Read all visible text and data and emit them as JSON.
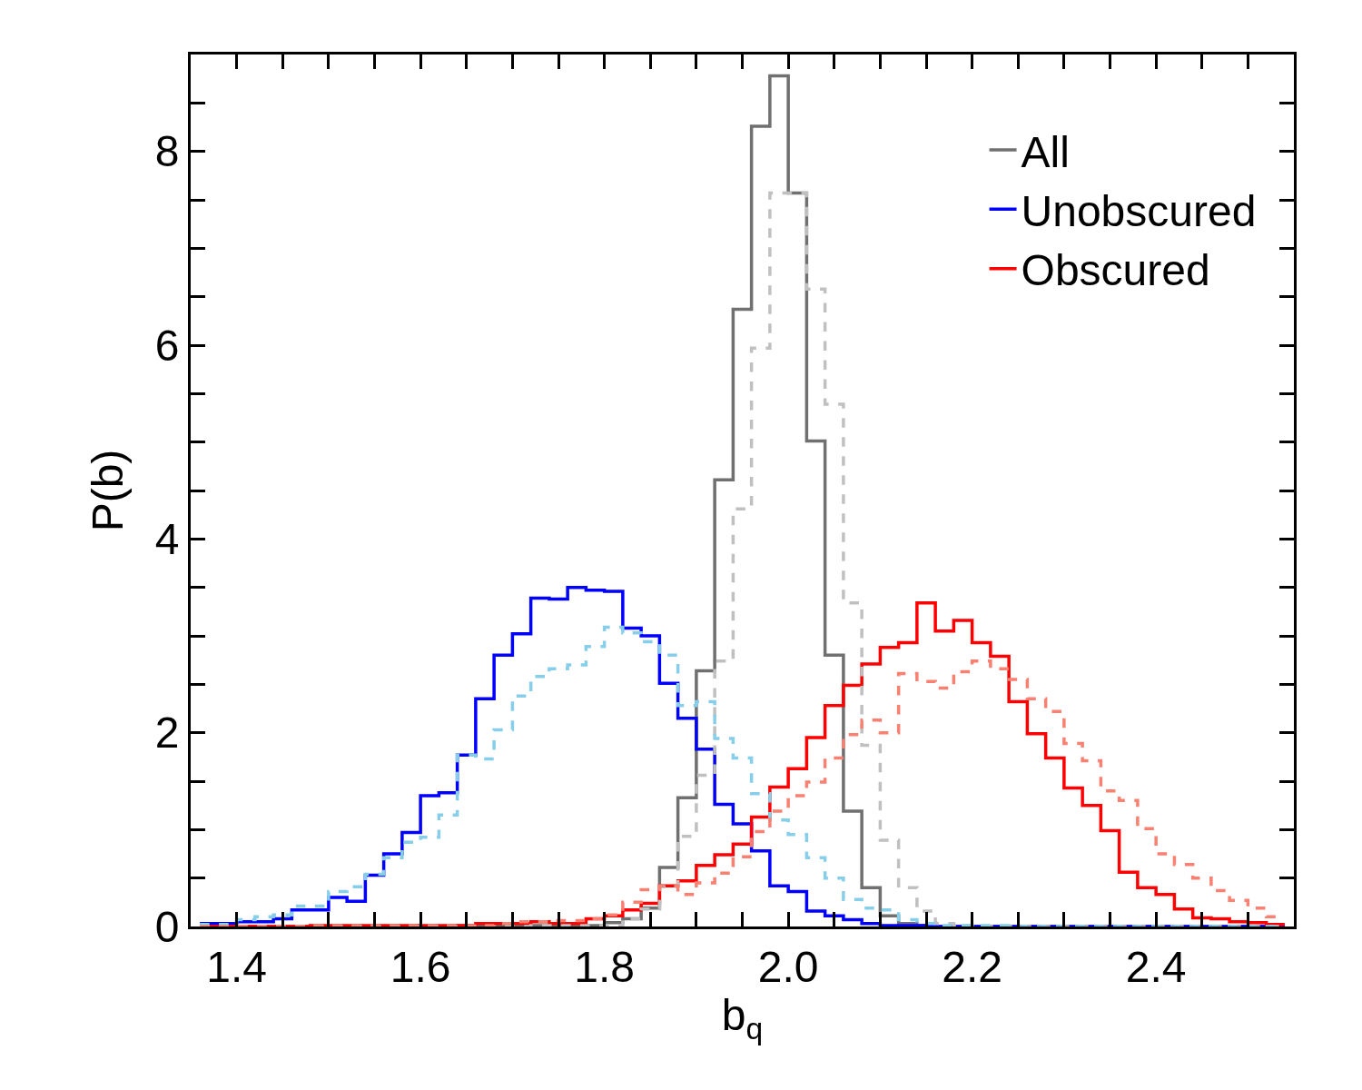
{
  "chart_data": {
    "type": "histogram",
    "xlabel": "b$_{q}$",
    "ylabel": "P(b)",
    "bins": [
      1.36,
      1.38,
      1.4,
      1.42,
      1.44,
      1.46,
      1.48,
      1.5,
      1.52,
      1.54,
      1.56,
      1.58,
      1.6,
      1.62,
      1.64,
      1.66,
      1.68,
      1.7,
      1.72,
      1.74,
      1.76,
      1.78,
      1.8,
      1.82,
      1.84,
      1.86,
      1.88,
      1.9,
      1.92,
      1.94,
      1.96,
      1.98,
      2.0,
      2.02,
      2.04,
      2.06,
      2.08,
      2.1,
      2.12,
      2.14,
      2.16,
      2.18,
      2.2,
      2.22,
      2.24,
      2.26,
      2.28,
      2.3,
      2.32,
      2.34,
      2.36,
      2.38,
      2.4,
      2.42,
      2.44,
      2.46,
      2.48,
      2.5,
      2.52,
      2.54
    ],
    "series": [
      {
        "name": "All",
        "color": "#707070",
        "line_style": "solid",
        "values": [
          0,
          0,
          0,
          0,
          0,
          0,
          0,
          0,
          0,
          0,
          0,
          0,
          0,
          0,
          0.01,
          0.01,
          0.01,
          0.01,
          0.01,
          0.01,
          0.01,
          0.01,
          0.04,
          0.08,
          0.19,
          0.61,
          1.33,
          2.64,
          4.61,
          6.37,
          8.26,
          8.78,
          7.57,
          5.01,
          2.8,
          1.19,
          0.4,
          0.11,
          0.03,
          0.01,
          0,
          0,
          0,
          0,
          0,
          0,
          0,
          0,
          0,
          0,
          0,
          0,
          0,
          0,
          0,
          0,
          0,
          0,
          0
        ]
      },
      {
        "name": "Unobscured",
        "color": "#0000ff",
        "line_style": "solid",
        "values": [
          0.03,
          0.03,
          0.05,
          0.05,
          0.08,
          0.17,
          0.17,
          0.3,
          0.26,
          0.53,
          0.75,
          0.97,
          1.35,
          1.38,
          1.77,
          2.35,
          2.8,
          3.02,
          3.39,
          3.38,
          3.5,
          3.47,
          3.46,
          3.08,
          3.0,
          2.51,
          2.15,
          1.83,
          1.26,
          1.06,
          0.78,
          0.42,
          0.36,
          0.16,
          0.11,
          0.07,
          0.03,
          0.01,
          0.01,
          0.01,
          0,
          0,
          0,
          0,
          0,
          0,
          0,
          0,
          0,
          0,
          0,
          0,
          0,
          0,
          0,
          0,
          0,
          0,
          0
        ]
      },
      {
        "name": "Obscured",
        "color": "#ff0000",
        "line_style": "solid",
        "values": [
          0,
          0,
          0,
          0,
          0,
          0,
          0.01,
          0.01,
          0.01,
          0.01,
          0.01,
          0.01,
          0.01,
          0.01,
          0.01,
          0.03,
          0.03,
          0.03,
          0.05,
          0.03,
          0.03,
          0.08,
          0.11,
          0.17,
          0.24,
          0.42,
          0.47,
          0.63,
          0.74,
          0.85,
          1.13,
          1.44,
          1.63,
          1.95,
          2.28,
          2.49,
          2.71,
          2.88,
          2.93,
          3.34,
          3.05,
          3.16,
          2.93,
          2.79,
          2.32,
          1.99,
          1.74,
          1.43,
          1.25,
          0.99,
          0.56,
          0.4,
          0.33,
          0.18,
          0.09,
          0.08,
          0.05,
          0.04,
          0.02
        ]
      },
      {
        "color": "#c0c0c0",
        "line_style": "dashed",
        "values": [
          0,
          0,
          0,
          0,
          0,
          0,
          0,
          0,
          0,
          0,
          0,
          0,
          0,
          0,
          0,
          0,
          0,
          0,
          0.01,
          0.01,
          0.01,
          0.01,
          0.01,
          0.08,
          0.18,
          0.41,
          0.93,
          1.56,
          2.74,
          4.31,
          5.97,
          7.57,
          7.57,
          6.58,
          5.39,
          3.34,
          1.87,
          0.89,
          0.4,
          0.16,
          0.03,
          0.01,
          0,
          0,
          0,
          0,
          0,
          0,
          0,
          0,
          0,
          0,
          0,
          0,
          0,
          0,
          0,
          0,
          0
        ]
      },
      {
        "color": "#87ceeb",
        "line_style": "dashed",
        "values": [
          0.02,
          0.02,
          0.07,
          0.1,
          0.12,
          0.21,
          0.21,
          0.36,
          0.41,
          0.54,
          0.71,
          0.87,
          0.92,
          1.15,
          1.77,
          1.73,
          2.03,
          2.38,
          2.58,
          2.66,
          2.7,
          2.89,
          3.09,
          3.03,
          2.94,
          2.8,
          2.28,
          2.32,
          1.94,
          1.74,
          1.37,
          1.1,
          0.95,
          0.71,
          0.5,
          0.28,
          0.19,
          0.17,
          0.07,
          0.03,
          0.01,
          0.01,
          0.01,
          0.01,
          0,
          0,
          0,
          0,
          0,
          0,
          0,
          0,
          0,
          0,
          0,
          0,
          0,
          0,
          0
        ]
      },
      {
        "color": "#fa8072",
        "line_style": "dashed",
        "values": [
          0,
          0,
          0,
          0,
          0,
          0,
          0.01,
          0.01,
          0.01,
          0.01,
          0.01,
          0.01,
          0.01,
          0.01,
          0.01,
          0.01,
          0.03,
          0.05,
          0.05,
          0.06,
          0.06,
          0.08,
          0.12,
          0.25,
          0.38,
          0.42,
          0.33,
          0.45,
          0.55,
          0.72,
          0.98,
          1.19,
          1.35,
          1.49,
          1.74,
          1.98,
          2.13,
          2.0,
          2.61,
          2.53,
          2.46,
          2.63,
          2.74,
          2.66,
          2.55,
          2.35,
          2.22,
          1.89,
          1.71,
          1.4,
          1.3,
          1.01,
          0.75,
          0.64,
          0.5,
          0.37,
          0.27,
          0.19,
          0.1
        ]
      }
    ],
    "xlim": [
      1.35,
      2.55
    ],
    "xticks": [
      {
        "value": 1.4,
        "label": "1.4"
      },
      {
        "value": 1.6,
        "label": "1.6"
      },
      {
        "value": 1.8,
        "label": "1.8"
      },
      {
        "value": 2.0,
        "label": "2.0"
      },
      {
        "value": 2.2,
        "label": "2.2"
      },
      {
        "value": 2.4,
        "label": "2.4"
      },
      {
        "value": 1.35,
        "label": null
      },
      {
        "value": 1.45,
        "label": null
      },
      {
        "value": 1.5,
        "label": null
      },
      {
        "value": 1.55,
        "label": null
      },
      {
        "value": 1.65,
        "label": null
      },
      {
        "value": 1.7,
        "label": null
      },
      {
        "value": 1.75,
        "label": null
      },
      {
        "value": 1.85,
        "label": null
      },
      {
        "value": 1.9,
        "label": null
      },
      {
        "value": 1.95,
        "label": null
      },
      {
        "value": 2.05,
        "label": null
      },
      {
        "value": 2.1,
        "label": null
      },
      {
        "value": 2.15,
        "label": null
      },
      {
        "value": 2.25,
        "label": null
      },
      {
        "value": 2.3,
        "label": null
      },
      {
        "value": 2.35,
        "label": null
      },
      {
        "value": 2.45,
        "label": null
      },
      {
        "value": 2.5,
        "label": null
      }
    ],
    "ylim": [
      0,
      9
    ],
    "yticks": [
      0,
      2,
      4,
      6,
      8,
      {
        "value": 0.5,
        "label": null
      },
      {
        "value": 1,
        "label": null
      },
      {
        "value": 1.5,
        "label": null
      },
      {
        "value": 2.5,
        "label": null
      },
      {
        "value": 3,
        "label": null
      },
      {
        "value": 3.5,
        "label": null
      },
      {
        "value": 4.5,
        "label": null
      },
      {
        "value": 5,
        "label": null
      },
      {
        "value": 5.5,
        "label": null
      },
      {
        "value": 6.5,
        "label": null
      },
      {
        "value": 7,
        "label": null
      },
      {
        "value": 7.5,
        "label": null
      },
      {
        "value": 8.5,
        "label": null
      }
    ],
    "legend": "top right"
  }
}
